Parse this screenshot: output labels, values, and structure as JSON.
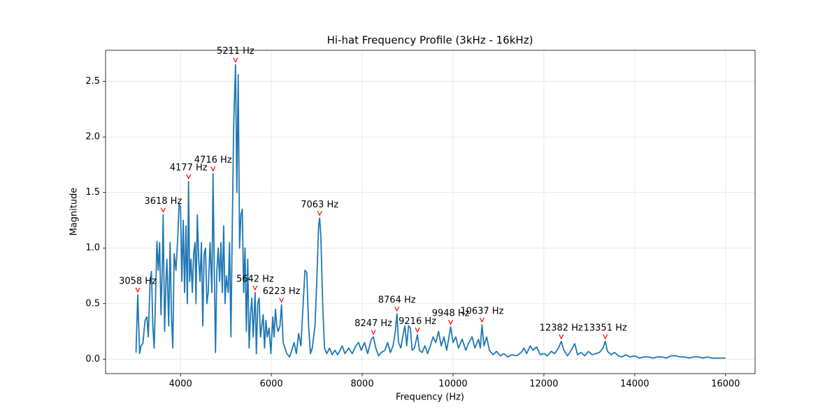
{
  "chart_data": {
    "type": "line",
    "title": "Hi-hat Frequency Profile (3kHz - 16kHz)",
    "x_label": "Frequency (Hz)",
    "y_label": "Magnitude",
    "color": "#1f77b4",
    "grid": true,
    "xlim": [
      2350,
      16650
    ],
    "ylim": [
      -0.13,
      2.78
    ],
    "xticks": [
      4000,
      6000,
      8000,
      10000,
      12000,
      14000,
      16000
    ],
    "yticks": [
      {
        "value": 0,
        "label": "0.0"
      },
      0.5,
      {
        "value": 1,
        "label": "1.0"
      },
      1.5,
      {
        "value": 2,
        "label": "2.0"
      },
      2.5
    ],
    "x": [
      3020,
      3058,
      3080,
      3100,
      3130,
      3170,
      3220,
      3260,
      3290,
      3330,
      3360,
      3390,
      3420,
      3450,
      3480,
      3510,
      3540,
      3570,
      3600,
      3618,
      3650,
      3680,
      3700,
      3740,
      3770,
      3800,
      3830,
      3860,
      3900,
      3940,
      3970,
      4000,
      4030,
      4060,
      4090,
      4120,
      4150,
      4177,
      4200,
      4230,
      4260,
      4290,
      4320,
      4340,
      4370,
      4400,
      4430,
      4460,
      4490,
      4520,
      4550,
      4580,
      4610,
      4650,
      4690,
      4716,
      4740,
      4770,
      4800,
      4830,
      4860,
      4890,
      4920,
      4950,
      4980,
      5010,
      5050,
      5080,
      5110,
      5140,
      5170,
      5211,
      5240,
      5270,
      5300,
      5330,
      5360,
      5390,
      5420,
      5450,
      5480,
      5510,
      5540,
      5570,
      5600,
      5642,
      5670,
      5700,
      5730,
      5760,
      5790,
      5820,
      5850,
      5880,
      5910,
      5950,
      5990,
      6030,
      6060,
      6090,
      6120,
      6150,
      6190,
      6223,
      6260,
      6300,
      6340,
      6400,
      6450,
      6500,
      6550,
      6600,
      6650,
      6700,
      6740,
      6780,
      6820,
      6860,
      6900,
      6960,
      7000,
      7040,
      7063,
      7090,
      7130,
      7170,
      7220,
      7280,
      7340,
      7400,
      7460,
      7500,
      7560,
      7620,
      7700,
      7780,
      7860,
      7920,
      7980,
      8050,
      8120,
      8200,
      8247,
      8300,
      8360,
      8420,
      8500,
      8560,
      8620,
      8680,
      8730,
      8764,
      8800,
      8850,
      8900,
      8940,
      8980,
      9020,
      9060,
      9100,
      9150,
      9216,
      9260,
      9320,
      9380,
      9440,
      9500,
      9560,
      9620,
      9680,
      9740,
      9800,
      9860,
      9948,
      10000,
      10060,
      10120,
      10200,
      10280,
      10350,
      10420,
      10480,
      10560,
      10600,
      10637,
      10680,
      10740,
      10800,
      10880,
      10960,
      11040,
      11120,
      11200,
      11300,
      11400,
      11500,
      11560,
      11620,
      11700,
      11760,
      11840,
      11920,
      12000,
      12080,
      12160,
      12240,
      12320,
      12382,
      12440,
      12520,
      12600,
      12680,
      12740,
      12820,
      12900,
      12980,
      13060,
      13140,
      13220,
      13300,
      13351,
      13400,
      13480,
      13560,
      13640,
      13720,
      13800,
      13900,
      14000,
      14100,
      14200,
      14300,
      14400,
      14500,
      14600,
      14700,
      14800,
      14900,
      15000,
      15100,
      15200,
      15300,
      15400,
      15500,
      15600,
      15700,
      15800,
      15900,
      16000
    ],
    "values": [
      0.06,
      0.58,
      0.3,
      0.05,
      0.12,
      0.14,
      0.35,
      0.38,
      0.2,
      0.7,
      0.79,
      0.3,
      0.1,
      0.55,
      1.06,
      0.8,
      1.05,
      0.4,
      0.85,
      1.3,
      0.25,
      0.7,
      0.9,
      0.3,
      1.05,
      0.4,
      0.1,
      0.95,
      0.8,
      1.1,
      1.4,
      1.37,
      0.7,
      1.25,
      0.6,
      1.2,
      0.5,
      1.6,
      0.7,
      0.9,
      0.6,
      0.95,
      1.05,
      0.5,
      1.3,
      0.9,
      0.7,
      1.05,
      0.3,
      0.95,
      1.0,
      0.5,
      0.6,
      1.05,
      0.6,
      1.67,
      0.9,
      0.06,
      0.8,
      1.0,
      0.7,
      1.05,
      0.6,
      1.2,
      0.5,
      0.75,
      0.6,
      1.05,
      0.2,
      1.2,
      2.1,
      2.65,
      1.5,
      2.56,
      1.0,
      1.3,
      1.35,
      0.6,
      1.0,
      0.25,
      0.9,
      0.1,
      0.4,
      0.55,
      0.2,
      0.6,
      0.05,
      0.5,
      0.55,
      0.2,
      0.3,
      0.4,
      0.1,
      0.35,
      0.2,
      0.28,
      0.05,
      0.38,
      0.2,
      0.45,
      0.3,
      0.25,
      0.3,
      0.49,
      0.15,
      0.1,
      0.05,
      0.02,
      0.08,
      0.15,
      0.05,
      0.23,
      0.12,
      0.5,
      0.8,
      0.78,
      0.3,
      0.05,
      0.1,
      0.3,
      0.7,
      1.2,
      1.27,
      1.1,
      0.5,
      0.1,
      0.05,
      0.1,
      0.04,
      0.08,
      0.04,
      0.07,
      0.12,
      0.05,
      0.1,
      0.05,
      0.12,
      0.15,
      0.08,
      0.15,
      0.05,
      0.18,
      0.2,
      0.1,
      0.03,
      0.06,
      0.08,
      0.15,
      0.06,
      0.12,
      0.25,
      0.41,
      0.15,
      0.1,
      0.22,
      0.3,
      0.12,
      0.3,
      0.28,
      0.08,
      0.1,
      0.22,
      0.08,
      0.06,
      0.12,
      0.05,
      0.12,
      0.2,
      0.15,
      0.25,
      0.12,
      0.2,
      0.08,
      0.29,
      0.15,
      0.2,
      0.1,
      0.18,
      0.08,
      0.15,
      0.2,
      0.1,
      0.18,
      0.1,
      0.31,
      0.12,
      0.2,
      0.08,
      0.04,
      0.07,
      0.03,
      0.05,
      0.02,
      0.04,
      0.03,
      0.06,
      0.1,
      0.05,
      0.12,
      0.08,
      0.11,
      0.04,
      0.05,
      0.03,
      0.07,
      0.05,
      0.1,
      0.16,
      0.08,
      0.03,
      0.08,
      0.14,
      0.04,
      0.06,
      0.03,
      0.07,
      0.04,
      0.05,
      0.06,
      0.1,
      0.16,
      0.07,
      0.04,
      0.06,
      0.03,
      0.02,
      0.04,
      0.02,
      0.03,
      0.01,
      0.02,
      0.02,
      0.01,
      0.02,
      0.02,
      0.01,
      0.03,
      0.03,
      0.02,
      0.02,
      0.01,
      0.02,
      0.02,
      0.01,
      0.02,
      0.01,
      0.01,
      0.01,
      0.01
    ],
    "annotation_color": "#ff0000",
    "annotations": [
      {
        "x": 3058,
        "y": 0.58,
        "label": "3058 Hz"
      },
      {
        "x": 3618,
        "y": 1.3,
        "label": "3618 Hz"
      },
      {
        "x": 4177,
        "y": 1.6,
        "label": "4177 Hz"
      },
      {
        "x": 4716,
        "y": 1.67,
        "label": "4716 Hz"
      },
      {
        "x": 5211,
        "y": 2.65,
        "label": "5211 Hz"
      },
      {
        "x": 5642,
        "y": 0.6,
        "label": "5642 Hz"
      },
      {
        "x": 6223,
        "y": 0.49,
        "label": "6223 Hz"
      },
      {
        "x": 7063,
        "y": 1.27,
        "label": "7063 Hz"
      },
      {
        "x": 8247,
        "y": 0.2,
        "label": "8247 Hz"
      },
      {
        "x": 8764,
        "y": 0.41,
        "label": "8764 Hz"
      },
      {
        "x": 9216,
        "y": 0.22,
        "label": "9216 Hz"
      },
      {
        "x": 9948,
        "y": 0.29,
        "label": "9948 Hz"
      },
      {
        "x": 10637,
        "y": 0.31,
        "label": "10637 Hz"
      },
      {
        "x": 12382,
        "y": 0.16,
        "label": "12382 Hz"
      },
      {
        "x": 13351,
        "y": 0.16,
        "label": "13351 Hz"
      }
    ]
  }
}
